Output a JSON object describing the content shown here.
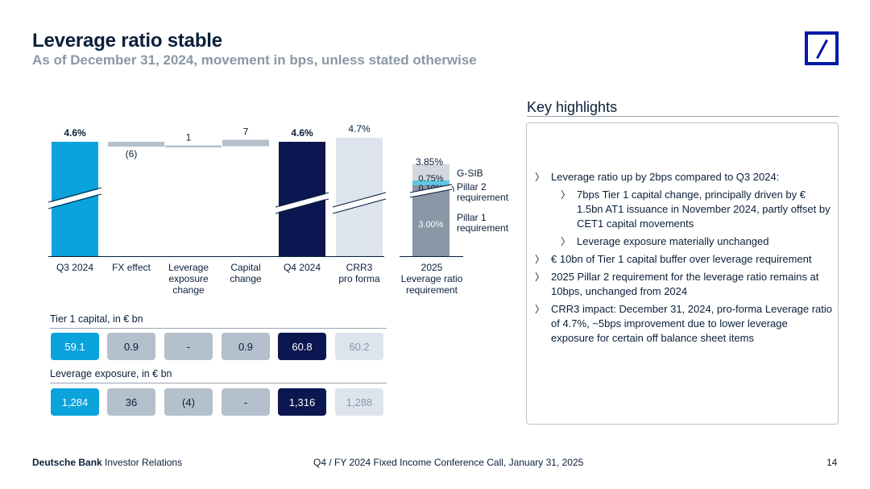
{
  "header": {
    "title": "Leverage ratio stable",
    "subtitle": "As of December 31, 2024, movement in bps, unless stated otherwise",
    "logo": "deutsche-bank-logo"
  },
  "chart_data": {
    "type": "bar",
    "subtype": "waterfall",
    "categories": [
      "Q3 2024",
      "FX effect",
      "Leverage exposure change",
      "Capital change",
      "Q4 2024",
      "CRR3 pro forma"
    ],
    "category_lines": [
      [
        "Q3 2024"
      ],
      [
        "FX effect"
      ],
      [
        "Leverage",
        "exposure",
        "change"
      ],
      [
        "Capital",
        "change"
      ],
      [
        "Q4 2024"
      ],
      [
        "CRR3",
        "pro forma"
      ]
    ],
    "value_labels": [
      "4.6%",
      "(6)",
      "1",
      "7",
      "4.6%",
      "4.7%"
    ],
    "movements_bps": [
      null,
      -6,
      1,
      7,
      null,
      null
    ],
    "totals_pct": [
      4.6,
      null,
      null,
      null,
      4.6,
      4.7
    ],
    "axis_break": true,
    "requirement_stack": {
      "category_lines": [
        "2025",
        "Leverage ratio",
        "requirement"
      ],
      "total_label": "3.85%",
      "segments": [
        {
          "name": "Pillar 1 requirement",
          "name_lines": [
            "Pillar 1",
            "requirement"
          ],
          "value": 3.0,
          "label": "3.00%",
          "color": "#8a97a6"
        },
        {
          "name": "Pillar 2 requirement",
          "name_lines": [
            "Pillar 2",
            "requirement"
          ],
          "value": 0.1,
          "label": "0.10%",
          "color": "#5fc8e3"
        },
        {
          "name": "G-SIB",
          "name_lines": [
            "G-SIB"
          ],
          "value": 0.75,
          "label": "0.75%",
          "color": "#d3d8de"
        }
      ]
    },
    "colors": {
      "q3": "#0aa3dc",
      "movement": "#b4c0cc",
      "q4": "#0c1650",
      "crr3": "#dde4ee"
    }
  },
  "tier1": {
    "label": "Tier 1 capital, in € bn",
    "values": [
      "59.1",
      "0.9",
      "-",
      "0.9",
      "60.8",
      "60.2"
    ]
  },
  "exposure": {
    "label": "Leverage exposure, in € bn",
    "values": [
      "1,284",
      "36",
      "(4)",
      "-",
      "1,316",
      "1,288"
    ]
  },
  "highlights": {
    "title": "Key highlights",
    "items": [
      {
        "level": 0,
        "text": "Leverage ratio up by 2bps compared to Q3 2024:"
      },
      {
        "level": 1,
        "text": "7bps Tier 1 capital change, principally driven by € 1.5bn AT1 issuance in November 2024, partly offset by CET1 capital movements"
      },
      {
        "level": 1,
        "text": "Leverage exposure materially unchanged"
      },
      {
        "level": 0,
        "text": "€ 10bn of Tier 1 capital buffer over leverage requirement"
      },
      {
        "level": 0,
        "text": "2025 Pillar 2 requirement for the leverage ratio remains at 10bps, unchanged from 2024"
      },
      {
        "level": 0,
        "text": "CRR3 impact: December 31, 2024, pro-forma Leverage ratio of 4.7%, ~5bps improvement due to lower leverage exposure for certain off balance sheet items"
      }
    ]
  },
  "footer": {
    "brand_bold": "Deutsche Bank",
    "brand_rest": " Investor Relations",
    "center": "Q4 / FY 2024 Fixed Income Conference Call, January 31, 2025",
    "page": "14"
  }
}
